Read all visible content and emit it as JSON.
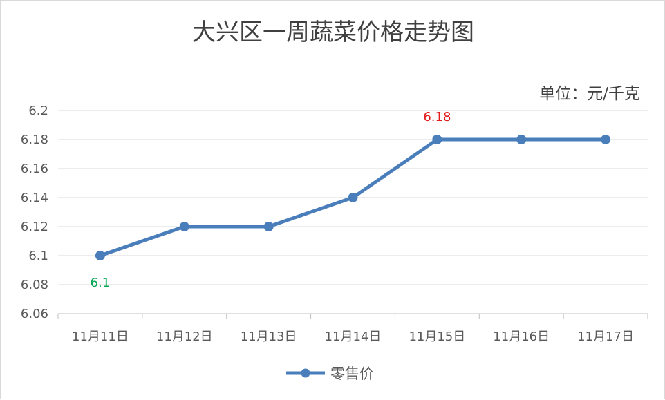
{
  "chart_data": {
    "type": "line",
    "title": "大兴区一周蔬菜价格走势图",
    "unit_label": "单位：元/千克",
    "categories": [
      "11月11日",
      "11月12日",
      "11月13日",
      "11月14日",
      "11月15日",
      "11月16日",
      "11月17日"
    ],
    "series": [
      {
        "name": "零售价",
        "values": [
          6.1,
          6.12,
          6.12,
          6.14,
          6.18,
          6.18,
          6.18
        ],
        "color": "#4a7ebb"
      }
    ],
    "ylim": [
      6.06,
      6.2
    ],
    "yticks": [
      "6.06",
      "6.08",
      "6.1",
      "6.12",
      "6.14",
      "6.16",
      "6.18",
      "6.2"
    ],
    "data_labels": [
      {
        "index": 0,
        "text": "6.1",
        "color": "#00a651",
        "position": "below"
      },
      {
        "index": 4,
        "text": "6.18",
        "color": "#e31b1b",
        "position": "above"
      }
    ],
    "grid": true,
    "legend": "bottom"
  }
}
